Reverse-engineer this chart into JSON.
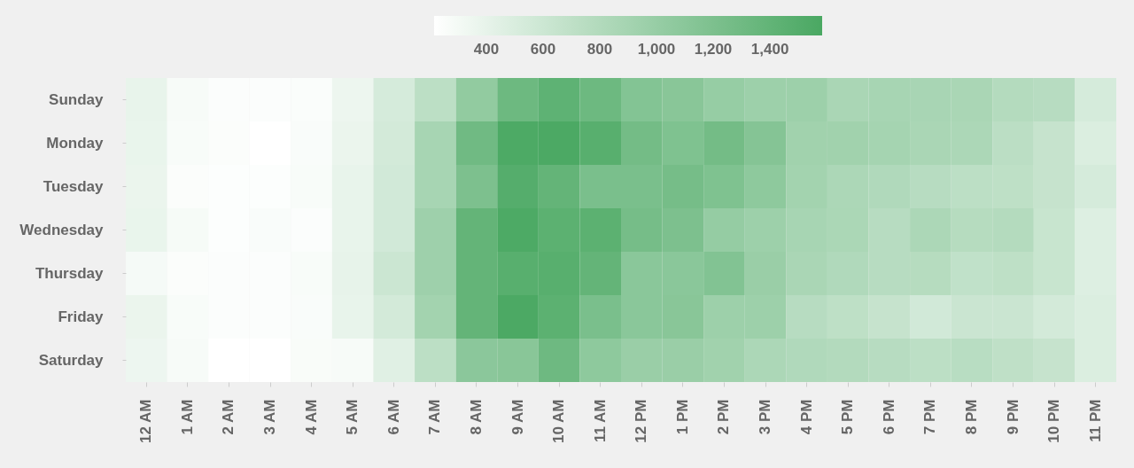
{
  "chart_data": {
    "type": "heatmap",
    "categories": [
      "12 AM",
      "1 AM",
      "2 AM",
      "3 AM",
      "4 AM",
      "5 AM",
      "6 AM",
      "7 AM",
      "8 AM",
      "9 AM",
      "10 AM",
      "11 AM",
      "12 PM",
      "1 PM",
      "2 PM",
      "3 PM",
      "4 PM",
      "5 PM",
      "6 PM",
      "7 PM",
      "8 PM",
      "9 PM",
      "10 PM",
      "11 PM"
    ],
    "y_categories": [
      "Sunday",
      "Monday",
      "Tuesday",
      "Wednesday",
      "Thursday",
      "Friday",
      "Saturday"
    ],
    "cells": [
      [
        390,
        280,
        245,
        245,
        255,
        355,
        530,
        720,
        1040,
        1320,
        1430,
        1320,
        1150,
        1110,
        1010,
        960,
        960,
        860,
        880,
        870,
        860,
        780,
        760,
        530
      ],
      [
        380,
        270,
        250,
        216,
        260,
        370,
        550,
        880,
        1300,
        1560,
        1570,
        1480,
        1270,
        1180,
        1270,
        1140,
        930,
        930,
        900,
        860,
        840,
        730,
        650,
        490
      ],
      [
        370,
        250,
        235,
        235,
        270,
        390,
        560,
        880,
        1200,
        1500,
        1390,
        1220,
        1220,
        1250,
        1180,
        1070,
        910,
        840,
        810,
        760,
        720,
        710,
        650,
        530
      ],
      [
        380,
        285,
        235,
        260,
        245,
        390,
        560,
        950,
        1390,
        1560,
        1450,
        1450,
        1250,
        1200,
        1020,
        960,
        880,
        850,
        760,
        840,
        770,
        780,
        630,
        470
      ],
      [
        290,
        250,
        245,
        245,
        270,
        400,
        610,
        950,
        1390,
        1480,
        1480,
        1390,
        1100,
        1100,
        1160,
        980,
        860,
        810,
        760,
        770,
        690,
        710,
        630,
        470
      ],
      [
        370,
        270,
        245,
        245,
        260,
        390,
        550,
        910,
        1390,
        1570,
        1450,
        1220,
        1100,
        1110,
        960,
        960,
        760,
        710,
        650,
        560,
        620,
        620,
        550,
        490
      ],
      [
        350,
        280,
        216,
        216,
        265,
        280,
        450,
        720,
        1090,
        1110,
        1310,
        1070,
        980,
        980,
        930,
        840,
        810,
        790,
        760,
        720,
        750,
        700,
        650,
        490
      ]
    ],
    "clim": [
      216,
      1584
    ],
    "cticks": [
      400,
      600,
      800,
      {
        "value": 1000,
        "label": "1,000"
      },
      {
        "value": 1200,
        "label": "1,200"
      },
      {
        "value": 1400,
        "label": "1,400"
      }
    ]
  }
}
